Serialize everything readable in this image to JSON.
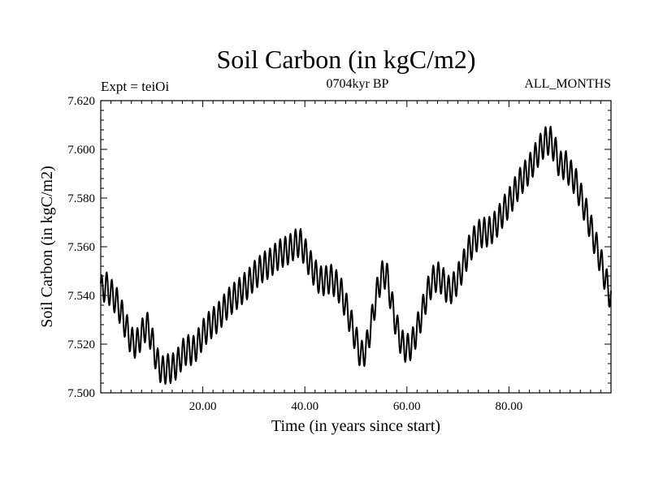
{
  "chart_data": {
    "type": "line",
    "title": "Soil Carbon (in kgC/m2)",
    "subtitle": "0704kyr BP",
    "left_note": "Expt = teiOi",
    "right_note": "ALL_MONTHS",
    "xlabel": "Time (in years since start)",
    "ylabel": "Soil Carbon (in kgC/m2)",
    "xlim": [
      0,
      100
    ],
    "ylim": [
      7.5,
      7.62
    ],
    "x_ticks": [
      20,
      40,
      60,
      80
    ],
    "x_tick_labels": [
      "20.00",
      "40.00",
      "60.00",
      "80.00"
    ],
    "y_ticks": [
      7.5,
      7.52,
      7.54,
      7.56,
      7.58,
      7.6,
      7.62
    ],
    "y_tick_labels": [
      "7.500",
      "7.520",
      "7.540",
      "7.560",
      "7.580",
      "7.600",
      "7.620"
    ],
    "series": [
      {
        "name": "Soil Carbon",
        "color": "#000000",
        "seasonal_amplitude": 0.006,
        "points_per_year": 12,
        "trend_x": [
          0,
          1,
          2,
          3,
          4,
          5,
          6,
          7,
          8,
          9,
          10,
          11,
          12,
          13,
          14,
          15,
          16,
          17,
          18,
          19,
          20,
          21,
          22,
          23,
          24,
          25,
          26,
          27,
          28,
          29,
          30,
          31,
          32,
          33,
          34,
          35,
          36,
          37,
          38,
          39,
          40,
          41,
          42,
          43,
          44,
          45,
          46,
          47,
          48,
          49,
          50,
          51,
          52,
          53,
          54,
          55,
          56,
          57,
          58,
          59,
          60,
          61,
          62,
          63,
          64,
          65,
          66,
          67,
          68,
          69,
          70,
          71,
          72,
          73,
          74,
          75,
          76,
          77,
          78,
          79,
          80,
          81,
          82,
          83,
          84,
          85,
          86,
          87,
          88,
          89,
          90,
          91,
          92,
          93,
          94,
          95,
          96,
          97,
          98,
          99,
          100
        ],
        "trend_y": [
          7.542,
          7.544,
          7.541,
          7.538,
          7.533,
          7.527,
          7.521,
          7.52,
          7.524,
          7.528,
          7.522,
          7.513,
          7.509,
          7.51,
          7.51,
          7.512,
          7.516,
          7.518,
          7.517,
          7.52,
          7.524,
          7.527,
          7.529,
          7.531,
          7.534,
          7.537,
          7.539,
          7.541,
          7.543,
          7.545,
          7.548,
          7.55,
          7.552,
          7.553,
          7.555,
          7.557,
          7.558,
          7.559,
          7.561,
          7.562,
          7.558,
          7.553,
          7.549,
          7.546,
          7.546,
          7.547,
          7.545,
          7.542,
          7.536,
          7.529,
          7.522,
          7.515,
          7.518,
          7.528,
          7.54,
          7.548,
          7.549,
          7.537,
          7.527,
          7.52,
          7.518,
          7.52,
          7.526,
          7.533,
          7.541,
          7.546,
          7.548,
          7.546,
          7.542,
          7.543,
          7.547,
          7.552,
          7.558,
          7.562,
          7.565,
          7.566,
          7.566,
          7.568,
          7.571,
          7.575,
          7.578,
          7.582,
          7.586,
          7.589,
          7.592,
          7.596,
          7.6,
          7.603,
          7.604,
          7.6,
          7.593,
          7.594,
          7.59,
          7.587,
          7.581,
          7.575,
          7.568,
          7.561,
          7.554,
          7.546,
          7.539
        ]
      }
    ]
  }
}
